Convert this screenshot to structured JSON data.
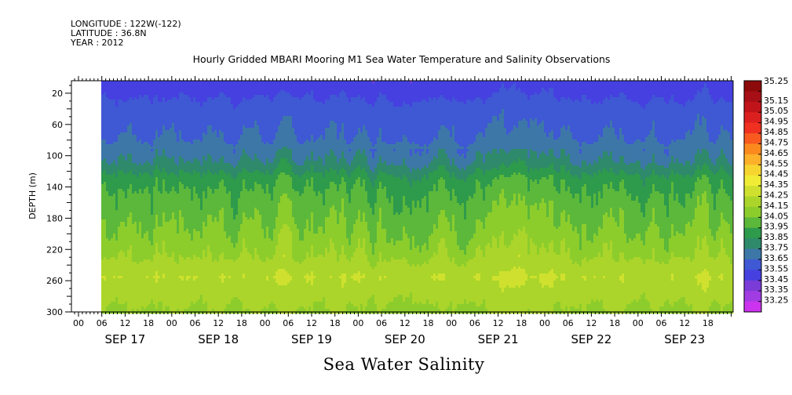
{
  "header": {
    "longitude": "LONGITUDE : 122W(-122)",
    "latitude": "LATITUDE : 36.8N",
    "year": "YEAR : 2012"
  },
  "chart_data": {
    "type": "heatmap",
    "title": "Hourly Gridded MBARI Mooring M1 Sea Water Temperature and Salinity Observations",
    "footer_title": "Sea Water Salinity",
    "ylabel": "DEPTH (m)",
    "xlabel": "",
    "ylim": [
      300,
      4
    ],
    "y_ticks": [
      20,
      60,
      100,
      140,
      180,
      220,
      260,
      300
    ],
    "x_hour_ticks": [
      "00",
      "06",
      "12",
      "18",
      "00",
      "06",
      "12",
      "18",
      "00",
      "06",
      "12",
      "18",
      "00",
      "06",
      "12",
      "18",
      "00",
      "06",
      "12",
      "18",
      "00",
      "06",
      "12",
      "18",
      "00",
      "06",
      "12",
      "18"
    ],
    "x_days": [
      "SEP 17",
      "SEP 18",
      "SEP 19",
      "SEP 20",
      "SEP 21",
      "SEP 22",
      "SEP 23"
    ],
    "data_start": "SEP 17 06",
    "colorbar": {
      "levels": [
        "35.25",
        "35.15",
        "35.05",
        "34.95",
        "34.85",
        "34.75",
        "34.65",
        "34.55",
        "34.45",
        "34.35",
        "34.25",
        "34.15",
        "34.05",
        "33.95",
        "33.85",
        "33.75",
        "33.65",
        "33.55",
        "33.45",
        "33.35",
        "33.25"
      ],
      "colors": [
        "#8c0a0a",
        "#a50f15",
        "#c0141a",
        "#dc2020",
        "#f03020",
        "#f85a20",
        "#fb8a1e",
        "#fdb02a",
        "#f7d530",
        "#f0ec35",
        "#cfe12e",
        "#abd52a",
        "#8ccd2c",
        "#5cb83a",
        "#2e9a4c",
        "#2e8a6a",
        "#3d77a8",
        "#3f58d4",
        "#4640e0",
        "#7a3bd6",
        "#a03ce2",
        "#cc33ee"
      ]
    },
    "profile": [
      {
        "depth": 4,
        "value": 33.5
      },
      {
        "depth": 16,
        "value": 33.52
      },
      {
        "depth": 40,
        "value": 33.6
      },
      {
        "depth": 80,
        "value": 33.66
      },
      {
        "depth": 110,
        "value": 33.78
      },
      {
        "depth": 130,
        "value": 33.92
      },
      {
        "depth": 150,
        "value": 33.98
      },
      {
        "depth": 180,
        "value": 34.04
      },
      {
        "depth": 215,
        "value": 34.12
      },
      {
        "depth": 235,
        "value": 34.17
      },
      {
        "depth": 255,
        "value": 34.25
      },
      {
        "depth": 275,
        "value": 34.2
      },
      {
        "depth": 300,
        "value": 34.14
      }
    ]
  }
}
